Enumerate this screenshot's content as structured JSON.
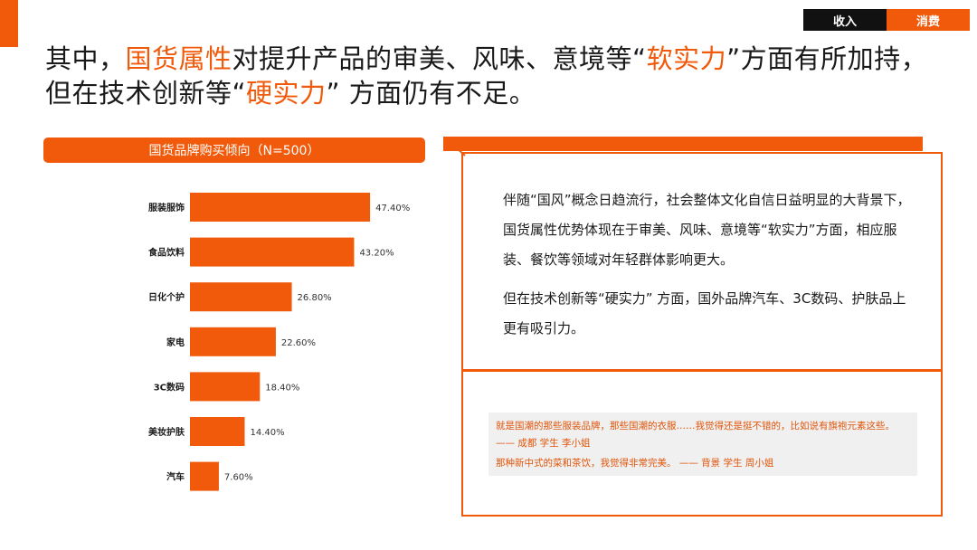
{
  "nav": {
    "tab_income": "收入",
    "tab_consume": "消费"
  },
  "headline": {
    "p1": "其中，",
    "h1": "国货属性",
    "p2": "对提升产品的审美、风味、意境等“",
    "h2": "软实力",
    "p3": "”方面有所加持，但在技术创新等“",
    "h3": "硬实力",
    "p4": "” 方面仍有不足。"
  },
  "chart_header": "国货品牌购买倾向（N=500）",
  "chart_data": {
    "type": "bar",
    "orientation": "horizontal",
    "title": "国货品牌购买倾向（N=500）",
    "categories": [
      "服装服饰",
      "食品饮料",
      "日化个护",
      "家电",
      "3C数码",
      "美妆护肤",
      "汽车"
    ],
    "values": [
      47.4,
      43.2,
      26.8,
      22.6,
      18.4,
      14.4,
      7.6
    ],
    "value_labels": [
      "47.40%",
      "43.20%",
      "26.80%",
      "22.60%",
      "18.40%",
      "14.40%",
      "7.60%"
    ],
    "unit": "%",
    "xlim": [
      0,
      100
    ],
    "grid": false,
    "bar_color": "#f05a0a"
  },
  "text_panel": {
    "para1": "伴随“国风”概念日趋流行，社会整体文化自信日益明显的大背景下，国货属性优势体现在于审美、风味、意境等“软实力”方面，相应服装、餐饮等领域对年轻群体影响更大。",
    "para2": "但在技术创新等“硬实力” 方面，国外品牌汽车、3C数码、护肤品上更有吸引力。"
  },
  "quotes": {
    "q1": "就是国潮的那些服装品牌，那些国潮的衣服……我觉得还是挺不错的，比如说有旗袍元素这些。 —— 成都 学生 李小姐",
    "q2": "那种新中式的菜和茶饮，我觉得非常完美。 —— 背景 学生 周小姐"
  },
  "colors": {
    "accent": "#f05a0a",
    "dark": "#111111",
    "quote_bg": "#f0f0f0"
  }
}
